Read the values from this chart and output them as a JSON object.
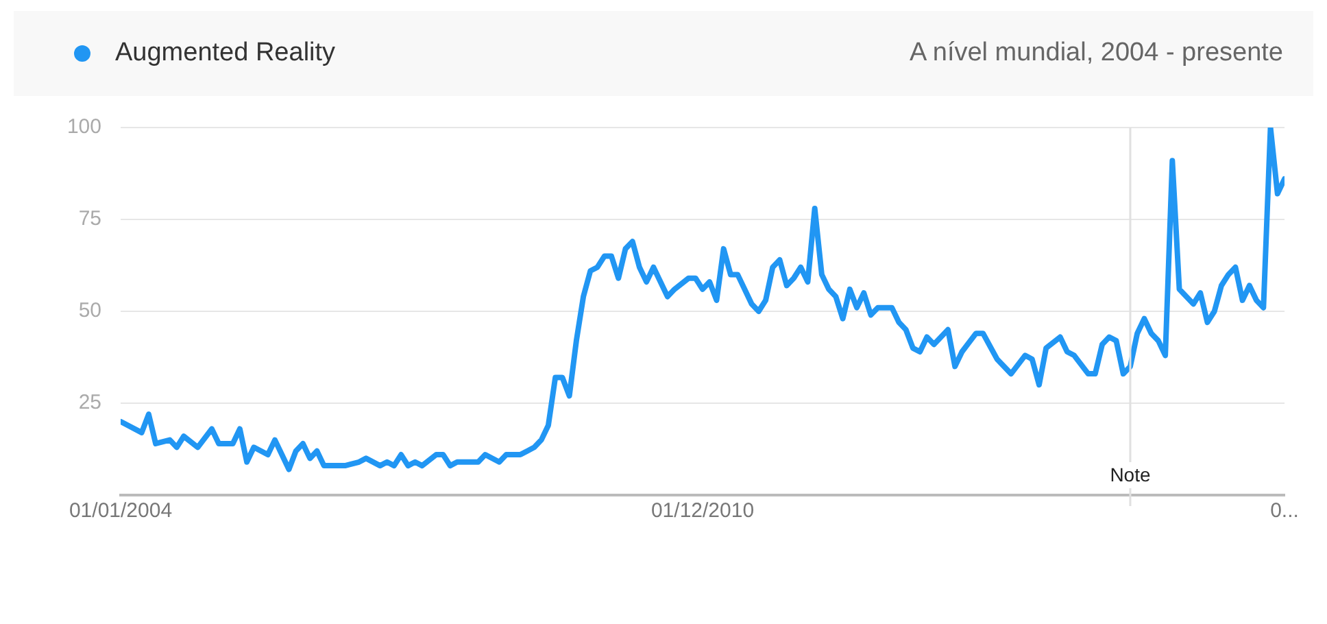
{
  "chart_data": {
    "type": "line",
    "subtitle": "A nível mundial, 2004 - presente",
    "x": [
      "2004-01",
      "2004-04",
      "2004-05",
      "2004-06",
      "2004-08",
      "2004-09",
      "2004-10",
      "2004-12",
      "2005-02",
      "2005-03",
      "2005-05",
      "2005-06",
      "2005-07",
      "2005-08",
      "2005-10",
      "2005-11",
      "2005-12",
      "2006-01",
      "2006-02",
      "2006-03",
      "2006-04",
      "2006-05",
      "2006-06",
      "2006-09",
      "2006-11",
      "2006-12",
      "2007-02",
      "2007-03",
      "2007-04",
      "2007-05",
      "2007-06",
      "2007-07",
      "2007-08",
      "2007-10",
      "2007-11",
      "2007-12",
      "2008-01",
      "2008-04",
      "2008-05",
      "2008-07",
      "2008-08",
      "2008-10",
      "2008-11",
      "2008-12",
      "2009-01",
      "2009-02",
      "2009-03",
      "2009-04",
      "2009-05",
      "2009-06",
      "2009-07",
      "2009-08",
      "2009-09",
      "2009-10",
      "2009-11",
      "2009-12",
      "2010-01",
      "2010-02",
      "2010-03",
      "2010-04",
      "2010-05",
      "2010-07",
      "2010-08",
      "2010-10",
      "2010-11",
      "2010-12",
      "2011-01",
      "2011-02",
      "2011-03",
      "2011-04",
      "2011-05",
      "2011-07",
      "2011-08",
      "2011-09",
      "2011-10",
      "2011-11",
      "2011-12",
      "2012-01",
      "2012-02",
      "2012-03",
      "2012-04",
      "2012-05",
      "2012-06",
      "2012-07",
      "2012-08",
      "2012-09",
      "2012-10",
      "2012-11",
      "2012-12",
      "2013-01",
      "2013-02",
      "2013-03",
      "2013-04",
      "2013-05",
      "2013-06",
      "2013-07",
      "2013-08",
      "2013-09",
      "2013-11",
      "2013-12",
      "2014-01",
      "2014-03",
      "2014-04",
      "2014-06",
      "2014-08",
      "2014-10",
      "2014-11",
      "2014-12",
      "2015-01",
      "2015-03",
      "2015-04",
      "2015-05",
      "2015-07",
      "2015-08",
      "2015-09",
      "2015-10",
      "2015-11",
      "2015-12",
      "2016-01",
      "2016-02",
      "2016-03",
      "2016-04",
      "2016-05",
      "2016-06",
      "2016-07",
      "2016-08",
      "2016-09",
      "2016-10",
      "2016-11",
      "2016-12",
      "2017-01",
      "2017-02",
      "2017-03",
      "2017-04",
      "2017-05",
      "2017-06",
      "2017-07",
      "2017-08",
      "2017-09",
      "2017-10",
      "2017-11"
    ],
    "series": [
      {
        "name": "Augmented Reality",
        "color": "#2196f3",
        "values": [
          20,
          17,
          22,
          14,
          15,
          13,
          16,
          13,
          18,
          14,
          14,
          18,
          9,
          13,
          11,
          15,
          11,
          7,
          12,
          14,
          10,
          12,
          8,
          8,
          9,
          10,
          8,
          9,
          8,
          11,
          8,
          9,
          8,
          11,
          11,
          8,
          9,
          9,
          11,
          9,
          11,
          11,
          12,
          13,
          15,
          19,
          32,
          32,
          27,
          42,
          54,
          61,
          62,
          65,
          65,
          59,
          67,
          69,
          62,
          58,
          62,
          54,
          56,
          59,
          59,
          56,
          58,
          53,
          67,
          60,
          60,
          52,
          50,
          53,
          62,
          64,
          57,
          59,
          62,
          58,
          78,
          60,
          56,
          54,
          48,
          56,
          51,
          55,
          49,
          51,
          51,
          51,
          47,
          45,
          40,
          39,
          43,
          41,
          45,
          35,
          39,
          44,
          44,
          37,
          33,
          38,
          37,
          30,
          40,
          43,
          39,
          38,
          33,
          33,
          41,
          43,
          42,
          33,
          35,
          44,
          48,
          44,
          42,
          38,
          91,
          56,
          54,
          52,
          55,
          47,
          50,
          57,
          60,
          62,
          53,
          57,
          53,
          51,
          100,
          82,
          86
        ]
      }
    ],
    "xlim": [
      "2004-01",
      "2017-11"
    ],
    "xticks": [
      {
        "value": "2004-01",
        "label": "01/01/2004"
      },
      {
        "value": "2010-12",
        "label": "01/12/2010"
      },
      {
        "value": "2017-11",
        "label": "0..."
      }
    ],
    "ylim": [
      0,
      100
    ],
    "yticks": [
      25,
      50,
      75,
      100
    ],
    "ref_lines": [
      {
        "axis": "x",
        "value": "2016-01",
        "label": "Note",
        "color": "#e0e0e0"
      }
    ],
    "grid": "y",
    "legend": "top left",
    "marker": "none",
    "line_style": "solid"
  }
}
